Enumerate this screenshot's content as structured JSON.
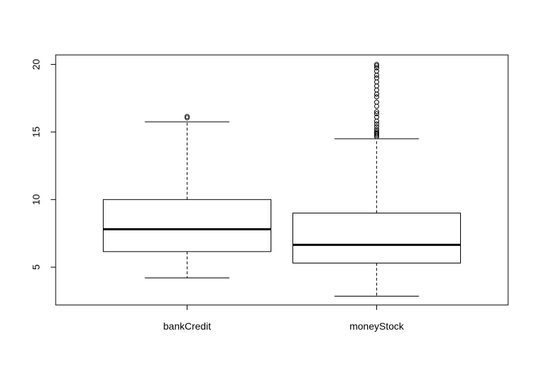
{
  "chart_data": {
    "type": "box",
    "title": "",
    "xlabel": "",
    "ylabel": "",
    "ylim": [
      2.2,
      20.7
    ],
    "yticks": [
      5,
      10,
      15,
      20
    ],
    "categories": [
      "bankCredit",
      "moneyStock"
    ],
    "boxes": [
      {
        "name": "bankCredit",
        "whisker_low": 4.2,
        "q1": 6.15,
        "median": 7.8,
        "q3": 10.0,
        "whisker_high": 15.75,
        "outliers": [
          16.05,
          16.15
        ]
      },
      {
        "name": "moneyStock",
        "whisker_low": 2.85,
        "q1": 5.3,
        "median": 6.65,
        "q3": 9.0,
        "whisker_high": 14.5,
        "outliers": [
          14.65,
          14.75,
          14.85,
          14.95,
          15.05,
          15.2,
          15.4,
          15.6,
          15.8,
          16.1,
          16.35,
          16.5,
          16.9,
          17.2,
          17.6,
          17.8,
          18.1,
          18.4,
          18.7,
          19.0,
          19.2,
          19.5,
          19.75,
          19.9,
          20.0
        ]
      }
    ],
    "colors": {
      "stroke": "#000000",
      "background": "#ffffff"
    }
  }
}
